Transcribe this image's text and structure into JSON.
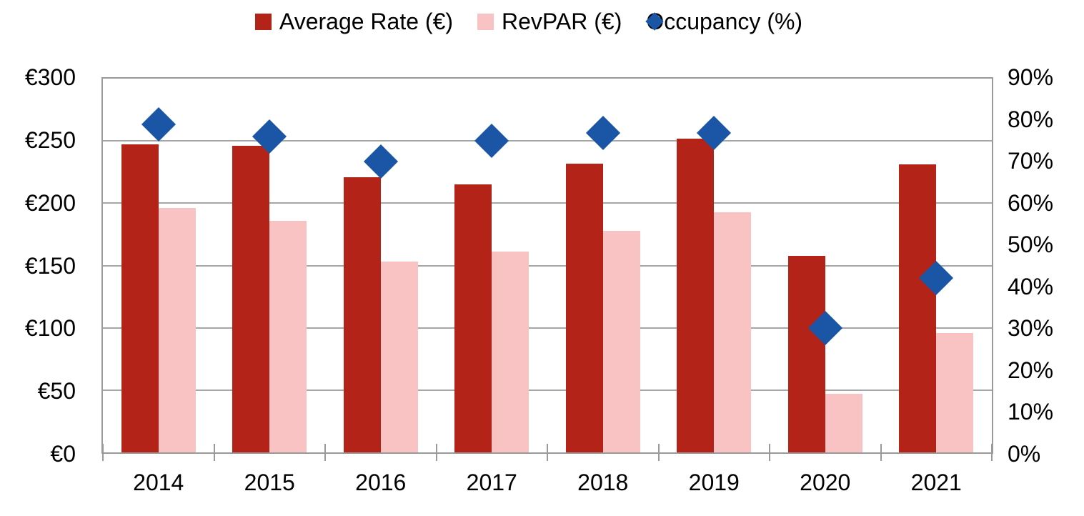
{
  "legend": [
    {
      "label": "Average Rate (€)",
      "marker": "square",
      "color": "#B32317"
    },
    {
      "label": "RevPAR (€)",
      "marker": "square",
      "color": "#F9C2C3"
    },
    {
      "label": "Occupancy (%)",
      "marker": "diamond",
      "color": "#1A56A5"
    }
  ],
  "chart_data": {
    "type": "bar",
    "subtype": "combo-bar-scatter",
    "title": "",
    "categories": [
      "2014",
      "2015",
      "2016",
      "2017",
      "2018",
      "2019",
      "2020",
      "2021"
    ],
    "series": [
      {
        "name": "Average Rate (€)",
        "type": "bar",
        "axis": "left",
        "color": "#B32317",
        "values": [
          247,
          246,
          221,
          215,
          232,
          252,
          158,
          231
        ]
      },
      {
        "name": "RevPAR (€)",
        "type": "bar",
        "axis": "left",
        "color": "#F9C2C3",
        "values": [
          196,
          186,
          153,
          161,
          178,
          193,
          47,
          96
        ]
      },
      {
        "name": "Occupancy (%)",
        "type": "scatter",
        "marker": "diamond",
        "axis": "right",
        "color": "#1A56A5",
        "values": [
          79,
          76,
          70,
          75,
          77,
          77,
          30,
          42
        ]
      }
    ],
    "left_axis": {
      "unit": "€",
      "min": 0,
      "max": 300,
      "step": 50,
      "tick_labels": [
        "€300",
        "€250",
        "€200",
        "€150",
        "€100",
        "€50",
        "€0"
      ]
    },
    "right_axis": {
      "unit": "%",
      "min": 0,
      "max": 90,
      "step": 10,
      "tick_labels": [
        "90%",
        "80%",
        "70%",
        "60%",
        "50%",
        "40%",
        "30%",
        "20%",
        "10%",
        "0%"
      ]
    },
    "grid": true,
    "legend_position": "top-center",
    "colors": {
      "grid": "#A6A6A6",
      "axis": "#9A9A9A",
      "text": "#000000",
      "background": "#FFFFFF"
    }
  }
}
